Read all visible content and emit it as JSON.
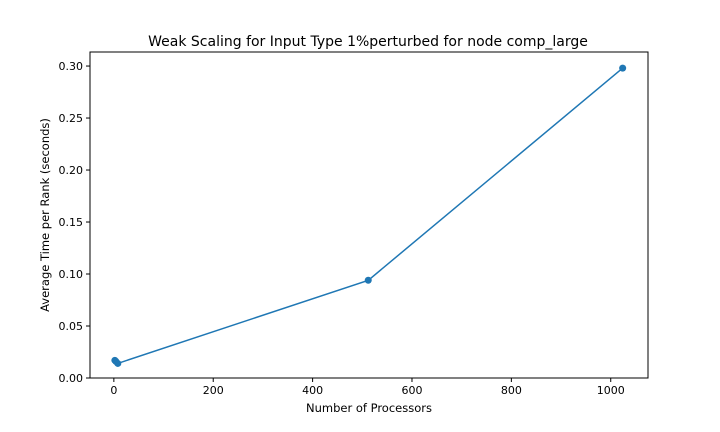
{
  "chart_data": {
    "type": "line",
    "title": "Weak Scaling for Input Type 1%perturbed for node comp_large",
    "xlabel": "Number of Processors",
    "ylabel": "Average Time per Rank (seconds)",
    "xlim": [
      -48,
      1075
    ],
    "ylim": [
      0,
      0.3135
    ],
    "xticks": [
      0,
      200,
      400,
      600,
      800,
      1000
    ],
    "xtick_labels": [
      "0",
      "200",
      "400",
      "600",
      "800",
      "1000"
    ],
    "yticks": [
      0.0,
      0.05,
      0.1,
      0.15,
      0.2,
      0.25,
      0.3
    ],
    "ytick_labels": [
      "0.00",
      "0.05",
      "0.10",
      "0.15",
      "0.20",
      "0.25",
      "0.30"
    ],
    "grid": false,
    "series": [
      {
        "color": "#1f77b4",
        "x": [
          2,
          4,
          8,
          512,
          1024
        ],
        "y": [
          0.017,
          0.016,
          0.014,
          0.094,
          0.298
        ]
      }
    ]
  }
}
